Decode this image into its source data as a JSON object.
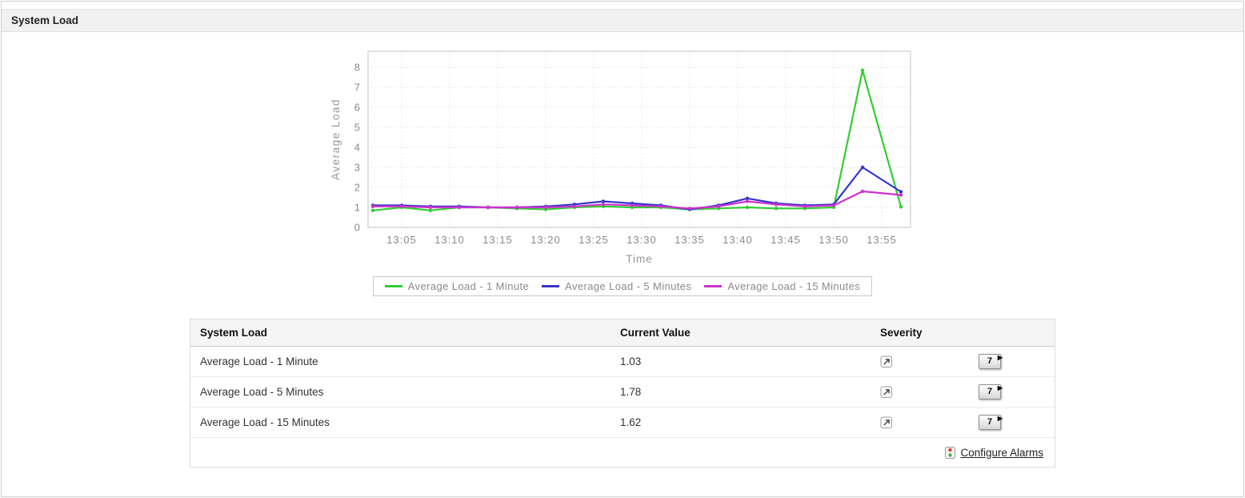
{
  "panel": {
    "title": "System Load"
  },
  "chart_data": {
    "type": "line",
    "title": "",
    "xlabel": "Time",
    "ylabel": "Average Load",
    "ylim": [
      0,
      8.8
    ],
    "y_ticks": [
      0,
      1,
      2,
      3,
      4,
      5,
      6,
      7,
      8
    ],
    "x_tick_labels": [
      "13:05",
      "13:10",
      "13:15",
      "13:20",
      "13:25",
      "13:30",
      "13:35",
      "13:40",
      "13:45",
      "13:50",
      "13:55"
    ],
    "x_tick_minutes": [
      5,
      10,
      15,
      20,
      25,
      30,
      35,
      40,
      45,
      50,
      55
    ],
    "x_range_minutes": [
      1.5,
      58
    ],
    "x_minutes": [
      2,
      5,
      8,
      11,
      14,
      17,
      20,
      23,
      26,
      29,
      32,
      35,
      38,
      41,
      44,
      47,
      50,
      53,
      57
    ],
    "grid": true,
    "legend_position": "bottom",
    "series": [
      {
        "name": "Average Load - 1 Minute",
        "color": "#33cc33",
        "values": [
          0.85,
          1.0,
          0.85,
          1.0,
          1.0,
          0.95,
          0.9,
          1.0,
          1.05,
          1.0,
          1.0,
          0.9,
          0.95,
          1.0,
          0.95,
          0.95,
          1.0,
          7.85,
          1.03
        ]
      },
      {
        "name": "Average Load - 5 Minutes",
        "color": "#3333cc",
        "values": [
          1.1,
          1.1,
          1.05,
          1.05,
          1.0,
          1.0,
          1.05,
          1.15,
          1.3,
          1.2,
          1.1,
          0.9,
          1.1,
          1.45,
          1.2,
          1.1,
          1.15,
          3.0,
          1.78
        ]
      },
      {
        "name": "Average Load - 15 Minutes",
        "color": "#cc33cc",
        "values": [
          1.05,
          1.05,
          1.0,
          1.0,
          1.0,
          1.0,
          1.0,
          1.05,
          1.15,
          1.1,
          1.05,
          0.95,
          1.05,
          1.3,
          1.15,
          1.05,
          1.1,
          1.8,
          1.62
        ]
      }
    ]
  },
  "table": {
    "headers": [
      "System Load",
      "Current Value",
      "Severity"
    ],
    "rows": [
      {
        "name": "Average Load - 1 Minute",
        "current_value": "1.03",
        "severity": "clear"
      },
      {
        "name": "Average Load - 5 Minutes",
        "current_value": "1.78",
        "severity": "clear"
      },
      {
        "name": "Average Load - 15 Minutes",
        "current_value": "1.62",
        "severity": "clear"
      }
    ],
    "history_button_label": "7",
    "footer": {
      "configure_alarms_label": "Configure Alarms"
    }
  }
}
